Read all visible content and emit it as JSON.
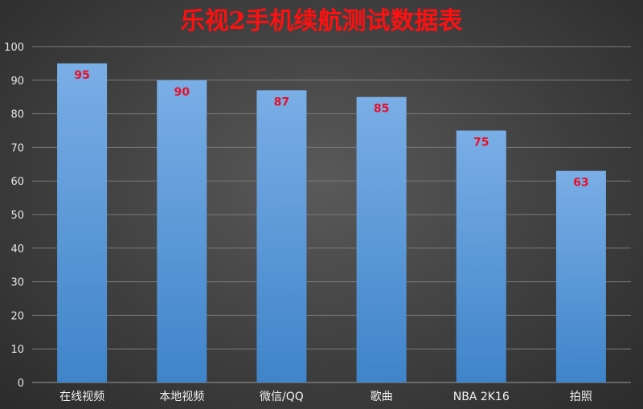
{
  "chart_data": {
    "type": "bar",
    "title": "乐视2手机续航测试数据表",
    "categories": [
      "在线视频",
      "本地视频",
      "微信/QQ",
      "歌曲",
      "NBA 2K16",
      "拍照"
    ],
    "values": [
      95,
      90,
      87,
      85,
      75,
      63
    ],
    "ylim": [
      0,
      100
    ],
    "yticks": [
      0,
      10,
      20,
      30,
      40,
      50,
      60,
      70,
      80,
      90,
      100
    ],
    "xlabel": "",
    "ylabel": "",
    "grid": true,
    "legend": "none",
    "colors": {
      "bar_top": "#7aaee6",
      "bar_bottom": "#3f84c9",
      "title": "#ff1010",
      "data_label": "#e8102a"
    }
  }
}
